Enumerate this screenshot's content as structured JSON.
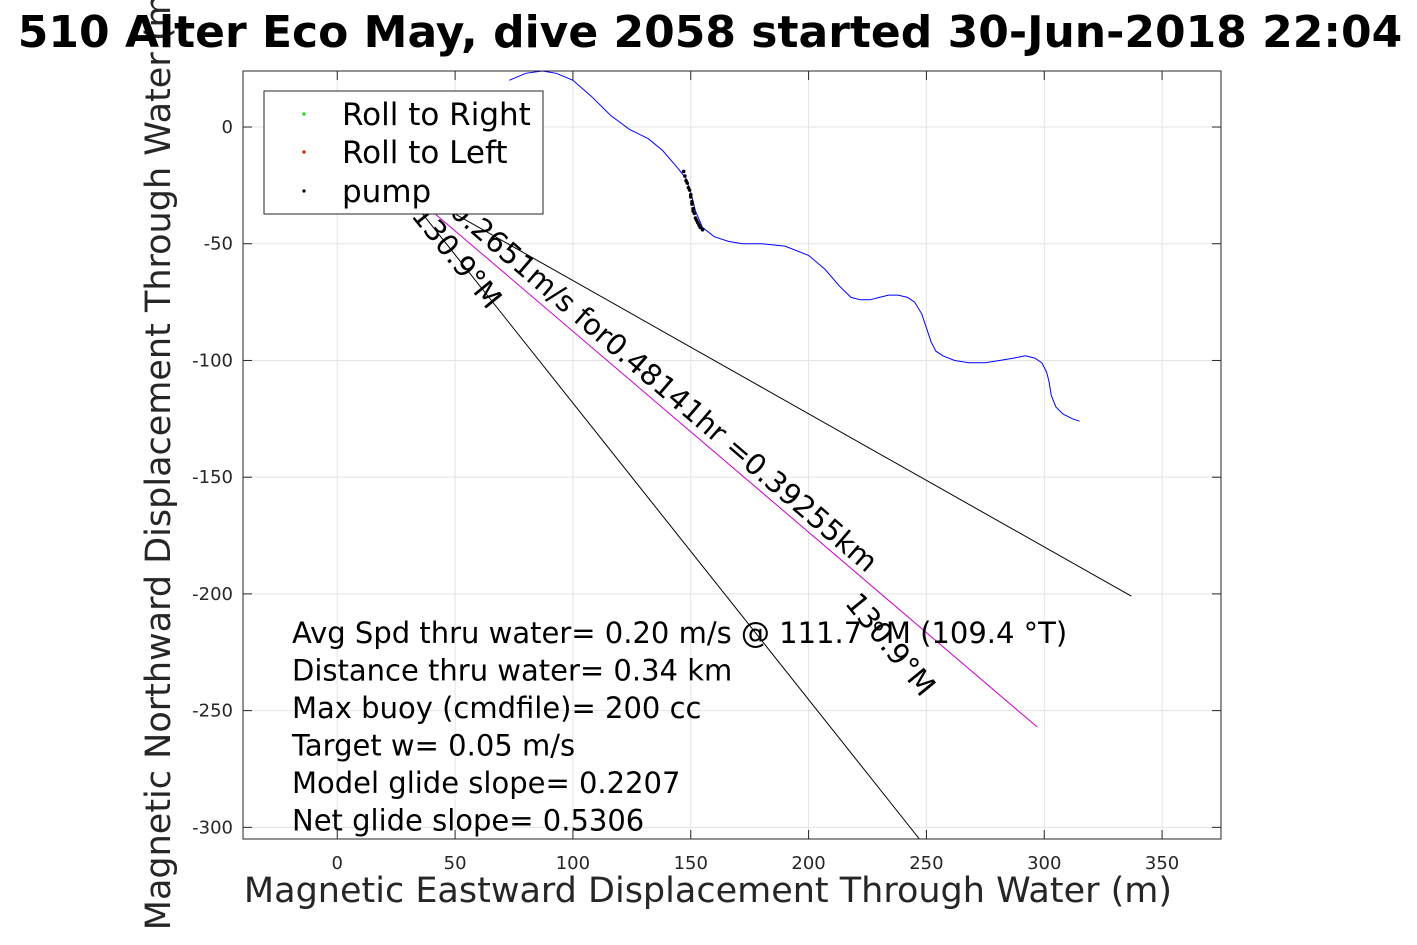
{
  "chart_data": {
    "type": "line",
    "title": "510 Alter Eco May, dive 2058 started 30-Jun-2018 22:04",
    "xlabel": "Magnetic Eastward Displacement Through Water (m)",
    "ylabel": "Magnetic Northward Displacement Through Water (m)",
    "xlim": [
      -40,
      375
    ],
    "ylim": [
      -305,
      24
    ],
    "xticks": [
      0,
      50,
      100,
      150,
      200,
      250,
      300,
      350
    ],
    "yticks": [
      0,
      -50,
      -100,
      -150,
      -200,
      -250,
      -300
    ],
    "grid": true,
    "legend_position": "top-left",
    "legend": [
      {
        "label": "Roll to Right",
        "color": "#00e000"
      },
      {
        "label": "Roll to Left",
        "color": "#ff0000"
      },
      {
        "label": "pump",
        "color": "#000000"
      }
    ],
    "series": [
      {
        "name": "",
        "style": "track",
        "color": "#0000ff",
        "x": [
          73,
          80,
          87,
          93,
          100,
          108,
          116,
          124,
          132,
          138,
          144,
          148,
          150,
          152,
          155,
          160,
          166,
          172,
          180,
          190,
          200,
          207,
          213,
          218,
          222,
          226,
          230,
          234,
          238,
          242,
          245,
          248,
          250,
          252,
          254,
          257,
          262,
          268,
          275,
          281,
          287,
          292,
          296,
          299,
          301,
          302,
          303,
          305,
          308,
          312,
          315
        ],
        "y": [
          20,
          23,
          24,
          23,
          20,
          13,
          5,
          -1,
          -5,
          -10,
          -17,
          -22,
          -28,
          -36,
          -43,
          -47,
          -49,
          -50,
          -50,
          -51,
          -55,
          -61,
          -68,
          -73,
          -74,
          -74,
          -73,
          -72,
          -72,
          -73,
          -75,
          -80,
          -86,
          -92,
          -96,
          -98,
          -100,
          -101,
          -101,
          -100,
          -99,
          -98,
          -99,
          -101,
          -105,
          -109,
          -115,
          -120,
          -123,
          -125,
          -126
        ]
      },
      {
        "name": "pump",
        "style": "dots",
        "color": "#000000",
        "x": [
          147,
          147.5,
          148,
          148.5,
          149,
          149.5,
          150,
          150,
          150.5,
          150.5,
          151,
          151,
          151.5,
          152,
          152.5,
          153,
          153.5,
          154,
          155
        ],
        "y": [
          -19,
          -21,
          -23,
          -24,
          -26,
          -27,
          -29,
          -30,
          -32,
          -33,
          -35,
          -36,
          -37,
          -39,
          -40,
          -41,
          -42,
          -43,
          -44
        ]
      },
      {
        "name": "",
        "style": "line",
        "color": "#000000",
        "x": [
          25,
          337
        ],
        "y": [
          -23,
          -201
        ]
      },
      {
        "name": "",
        "style": "line",
        "color": "#000000",
        "x": [
          25,
          247
        ],
        "y": [
          -23,
          -305
        ]
      },
      {
        "name": "",
        "style": "line",
        "color": "#cc00cc",
        "x": [
          25,
          297
        ],
        "y": [
          -23,
          -257
        ]
      }
    ],
    "annotations": [
      {
        "text": "0.2651m/s for0.48141hr =0.39255km",
        "x": 47,
        "y": -37,
        "rotate": 40.7
      },
      {
        "text": "130.9°M",
        "x": 31,
        "y": -38,
        "rotate": 50.8
      },
      {
        "text": "130.9°M",
        "x": 215,
        "y": -204,
        "rotate": 50.8
      }
    ],
    "stats": [
      "Avg Spd thru water=  0.20 m/s @ 111.7 °M (109.4 °T)",
      "Distance thru water=  0.34 km",
      "Max buoy (cmdfile)= 200 cc",
      "Target w= 0.05 m/s",
      "Model glide slope= 0.2207",
      "Net glide slope= 0.5306"
    ]
  }
}
